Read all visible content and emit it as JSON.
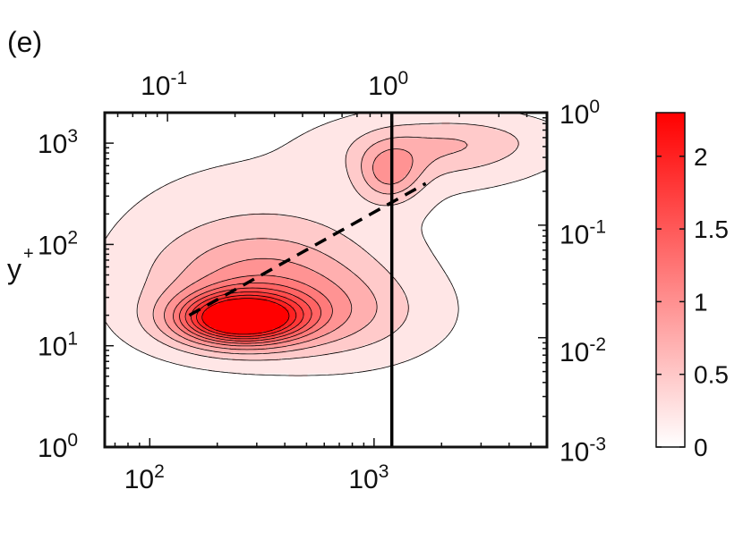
{
  "panel_label": "(e)",
  "colors": {
    "max": "#ff0000",
    "min": "#ffffff",
    "contour_line": "#000000",
    "dashed_line": "#000000",
    "vertical_line": "#000000"
  },
  "chart_data": {
    "type": "heatmap",
    "subtype": "filled contour",
    "ylabel": "y",
    "ylabel_sup": "+",
    "x_axis": {
      "scale": "log",
      "range": [
        63,
        5900
      ],
      "ticks": [
        {
          "value": 100,
          "base": "10",
          "exp": "2"
        },
        {
          "value": 1000,
          "base": "10",
          "exp": "3"
        }
      ]
    },
    "y_axis": {
      "scale": "log",
      "range": [
        1,
        2000
      ],
      "ticks": [
        {
          "value": 1,
          "base": "10",
          "exp": "0"
        },
        {
          "value": 10,
          "base": "10",
          "exp": "1"
        },
        {
          "value": 100,
          "base": "10",
          "exp": "2"
        },
        {
          "value": 1000,
          "base": "10",
          "exp": "3"
        }
      ]
    },
    "top_axis": {
      "scale": "log",
      "ticks": [
        {
          "x_position": 120,
          "base": "10",
          "exp": "-1"
        },
        {
          "x_position": 1200,
          "base": "10",
          "exp": "0"
        }
      ]
    },
    "right_axis": {
      "scale": "log",
      "ticks": [
        {
          "y_position": 2000,
          "base": "10",
          "exp": "0"
        },
        {
          "y_position": 130,
          "base": "10",
          "exp": "-1"
        },
        {
          "y_position": 9,
          "base": "10",
          "exp": "-2"
        },
        {
          "y_position": 0.93,
          "base": "10",
          "exp": "-3"
        }
      ]
    },
    "colorbar": {
      "range": [
        0,
        2.3
      ],
      "ticks": [
        {
          "value": 0,
          "label": "0"
        },
        {
          "value": 0.5,
          "label": "0.5"
        },
        {
          "value": 1,
          "label": "1"
        },
        {
          "value": 1.5,
          "label": "1.5"
        },
        {
          "value": 2,
          "label": "2"
        }
      ]
    },
    "contour_levels": [
      0.1,
      0.35,
      0.6,
      0.85,
      1.1,
      1.3,
      1.5,
      1.7,
      1.9,
      2.1
    ],
    "peaks": [
      {
        "x": 250,
        "y": 18,
        "value": 2.3
      },
      {
        "x": 300,
        "y": 40,
        "value": 1.0
      },
      {
        "x": 1200,
        "y": 500,
        "value": 0.9
      },
      {
        "x": 2000,
        "y": 900,
        "value": 0.55
      }
    ],
    "dashed_line": [
      [
        150,
        20
      ],
      [
        1700,
        400
      ]
    ],
    "vertical_line_x": 1200
  }
}
